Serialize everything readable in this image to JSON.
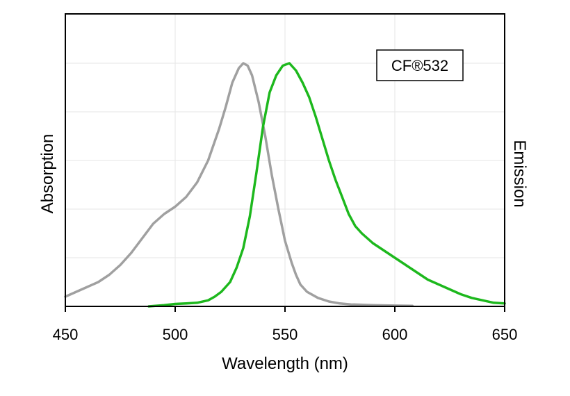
{
  "chart_data": {
    "type": "line",
    "title": "",
    "xlabel": "Wavelength (nm)",
    "ylabel_left": "Absorption",
    "ylabel_right": "Emission",
    "xlim": [
      450,
      650
    ],
    "ylim": [
      0,
      1
    ],
    "xticks": [
      450,
      500,
      550,
      600,
      650
    ],
    "grid": true,
    "annotation": "CF®532",
    "annotation_position": "top-right",
    "series": [
      {
        "name": "Absorption",
        "color": "#a0a0a0",
        "x": [
          450,
          455,
          460,
          465,
          470,
          475,
          480,
          485,
          490,
          495,
          500,
          505,
          510,
          515,
          520,
          523,
          526,
          529,
          531,
          533,
          535,
          538,
          541,
          544,
          547,
          550,
          553,
          555,
          557,
          560,
          565,
          570,
          575,
          580,
          590,
          600,
          608
        ],
        "y": [
          0.04,
          0.06,
          0.08,
          0.1,
          0.13,
          0.17,
          0.22,
          0.28,
          0.34,
          0.38,
          0.41,
          0.45,
          0.51,
          0.6,
          0.73,
          0.82,
          0.92,
          0.98,
          1.0,
          0.99,
          0.95,
          0.84,
          0.7,
          0.54,
          0.4,
          0.27,
          0.18,
          0.13,
          0.09,
          0.06,
          0.035,
          0.02,
          0.012,
          0.008,
          0.005,
          0.003,
          0.002
        ]
      },
      {
        "name": "Emission",
        "color": "#1db81d",
        "x": [
          488,
          495,
          500,
          505,
          510,
          515,
          518,
          521,
          525,
          528,
          531,
          534,
          537,
          540,
          543,
          546,
          549,
          552,
          555,
          558,
          561,
          564,
          567,
          570,
          573,
          576,
          579,
          582,
          585,
          590,
          595,
          600,
          605,
          610,
          615,
          620,
          625,
          630,
          635,
          640,
          645,
          650
        ],
        "y": [
          0.0,
          0.005,
          0.01,
          0.012,
          0.015,
          0.025,
          0.04,
          0.06,
          0.1,
          0.16,
          0.24,
          0.37,
          0.55,
          0.74,
          0.88,
          0.95,
          0.99,
          1.0,
          0.97,
          0.92,
          0.86,
          0.78,
          0.69,
          0.6,
          0.52,
          0.45,
          0.38,
          0.33,
          0.3,
          0.26,
          0.23,
          0.2,
          0.17,
          0.14,
          0.11,
          0.09,
          0.07,
          0.05,
          0.035,
          0.025,
          0.015,
          0.012
        ]
      }
    ]
  }
}
